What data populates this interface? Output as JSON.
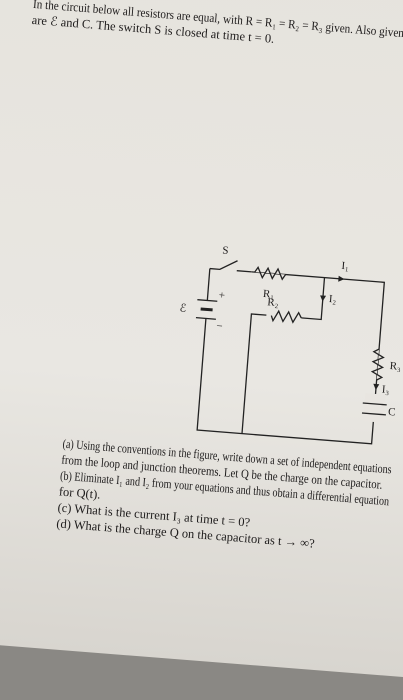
{
  "problem": {
    "intro": [
      "In the circuit below all resistors are equal, with R = R₁ = R₂ = R₃ given. Also given",
      "are ℰ and C. The switch S is closed at time t = 0."
    ],
    "circuit": {
      "switch": "S",
      "emf": "ℰ",
      "plus": "+",
      "minus": "−",
      "R1": "R₁",
      "R2": "R₂",
      "R3": "R₃",
      "I1": "I₁",
      "I2": "I₂",
      "I3": "I₃",
      "capacitor": "C"
    },
    "parts": [
      "(a) Using the conventions in the figure, write down a set of independent equations",
      "from the loop and junction theorems. Let Q be the charge on the capacitor.",
      "(b) Eliminate I₁ and I₂ from your equations and thus obtain a differential equation",
      "for Q(t).",
      "(c) What is the current I₃ at time t = 0?",
      "(d) What is the charge Q on the capacitor as t → ∞?"
    ]
  }
}
